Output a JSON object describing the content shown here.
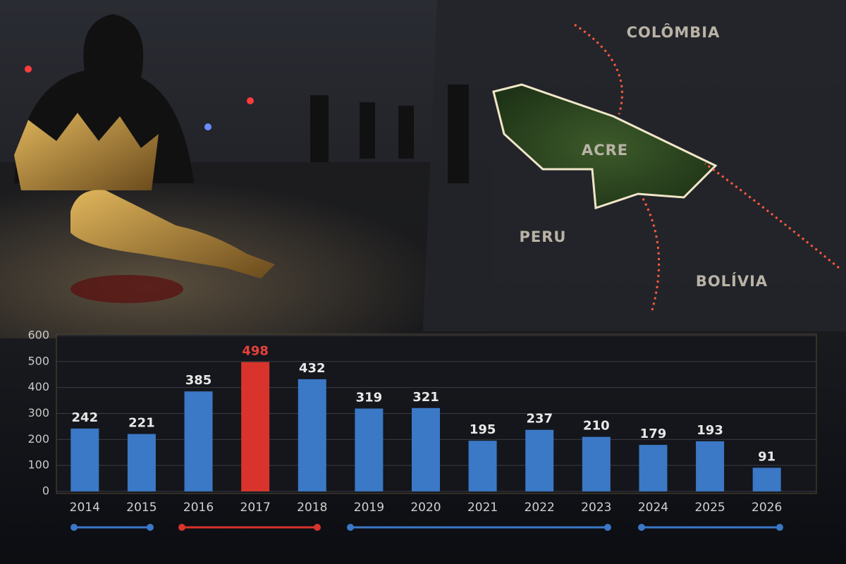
{
  "map": {
    "labels": [
      "COLÔMBIA",
      "ACRE",
      "PERU",
      "BOLÍVIA"
    ]
  },
  "chart_data": {
    "type": "bar",
    "categories": [
      "2014",
      "2015",
      "2016",
      "2017",
      "2018",
      "2019",
      "2020",
      "2021",
      "2022",
      "2023",
      "2024",
      "2025",
      "2026"
    ],
    "values": [
      242,
      221,
      385,
      498,
      432,
      319,
      321,
      195,
      237,
      210,
      179,
      193,
      91
    ],
    "colors": [
      "#3b78c6",
      "#3b78c6",
      "#3b78c6",
      "#d9342b",
      "#3b78c6",
      "#3b78c6",
      "#3b78c6",
      "#3b78c6",
      "#3b78c6",
      "#3b78c6",
      "#3b78c6",
      "#3b78c6",
      "#3b78c6"
    ],
    "value_label_colors": [
      "#e8e8e8",
      "#e8e8e8",
      "#e8e8e8",
      "#e8413a",
      "#e8e8e8",
      "#e8e8e8",
      "#e8e8e8",
      "#e8e8e8",
      "#e8e8e8",
      "#e8e8e8",
      "#e8e8e8",
      "#e8e8e8",
      "#e8e8e8"
    ],
    "ylim": [
      0,
      600
    ],
    "yticks": [
      0,
      100,
      200,
      300,
      400,
      500,
      600
    ],
    "grid": true
  }
}
